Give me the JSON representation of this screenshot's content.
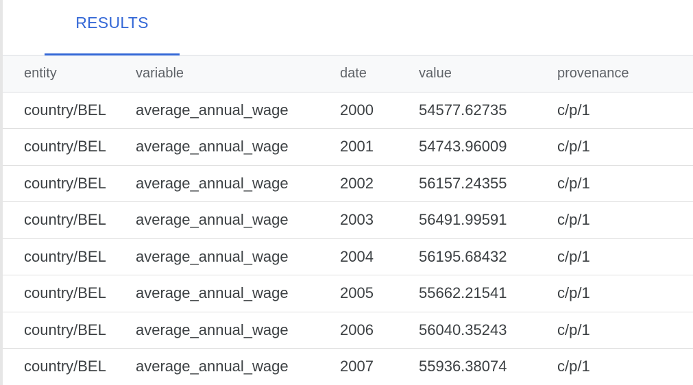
{
  "tabs": [
    {
      "label": "RESULTS",
      "active": true
    }
  ],
  "table": {
    "columns": [
      "entity",
      "variable",
      "date",
      "value",
      "provenance"
    ],
    "rows": [
      [
        "country/BEL",
        "average_annual_wage",
        "2000",
        "54577.62735",
        "c/p/1"
      ],
      [
        "country/BEL",
        "average_annual_wage",
        "2001",
        "54743.96009",
        "c/p/1"
      ],
      [
        "country/BEL",
        "average_annual_wage",
        "2002",
        "56157.24355",
        "c/p/1"
      ],
      [
        "country/BEL",
        "average_annual_wage",
        "2003",
        "56491.99591",
        "c/p/1"
      ],
      [
        "country/BEL",
        "average_annual_wage",
        "2004",
        "56195.68432",
        "c/p/1"
      ],
      [
        "country/BEL",
        "average_annual_wage",
        "2005",
        "55662.21541",
        "c/p/1"
      ],
      [
        "country/BEL",
        "average_annual_wage",
        "2006",
        "56040.35243",
        "c/p/1"
      ],
      [
        "country/BEL",
        "average_annual_wage",
        "2007",
        "55936.38074",
        "c/p/1"
      ]
    ]
  },
  "colors": {
    "accent": "#3367d6",
    "header_text": "#5f6368",
    "cell_text": "#3c4043",
    "header_bg": "#f8f9fa"
  }
}
